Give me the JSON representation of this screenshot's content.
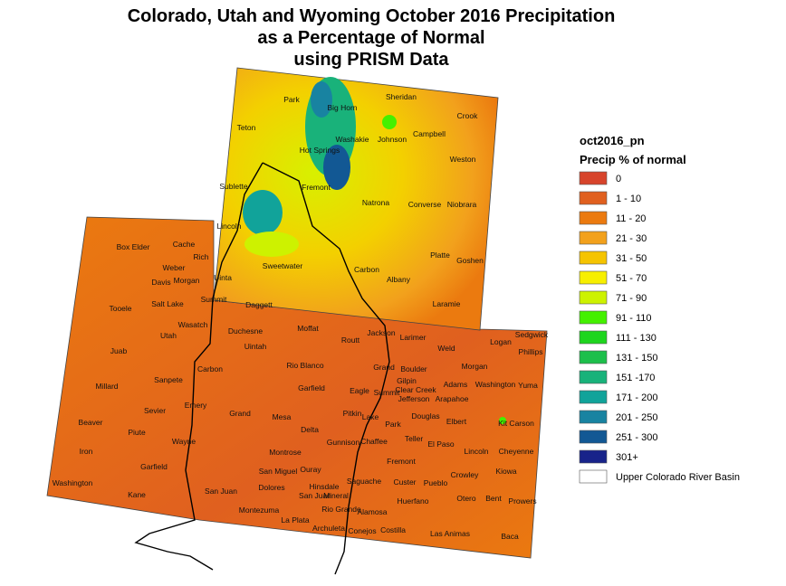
{
  "title": [
    "Colorado, Utah and Wyoming October 2016 Precipitation",
    "as a Percentage of Normal",
    "using PRISM Data"
  ],
  "legend": {
    "title": "oct2016_pn",
    "subtitle": "Precip % of normal",
    "items": [
      {
        "label": "0",
        "color": "#d7442b"
      },
      {
        "label": "1 - 10",
        "color": "#e0601f"
      },
      {
        "label": "11 - 20",
        "color": "#eb7a0f"
      },
      {
        "label": "21 - 30",
        "color": "#f2a11c"
      },
      {
        "label": "31 - 50",
        "color": "#f5c400"
      },
      {
        "label": "51 - 70",
        "color": "#f7ef00"
      },
      {
        "label": "71 - 90",
        "color": "#cdf200"
      },
      {
        "label": "91 - 110",
        "color": "#44f000"
      },
      {
        "label": "111 - 130",
        "color": "#1ed51e"
      },
      {
        "label": "131 - 150",
        "color": "#1dbf4b"
      },
      {
        "label": "151 -170",
        "color": "#19b27a"
      },
      {
        "label": "171 - 200",
        "color": "#11a39a"
      },
      {
        "label": "201 - 250",
        "color": "#1883a1"
      },
      {
        "label": "251 - 300",
        "color": "#125894"
      },
      {
        "label": "301+",
        "color": "#18238a"
      },
      {
        "label": "Upper Colorado River Basin",
        "color": "#ffffff"
      }
    ]
  },
  "labels": [
    "Park",
    "Sheridan",
    "Big Horn",
    "Crook",
    "Teton",
    "Washakie",
    "Johnson",
    "Campbell",
    "Hot Springs",
    "Weston",
    "Fremont",
    "Sublette",
    "Natrona",
    "Converse",
    "Niobrara",
    "Lincoln",
    "Sweetwater",
    "Carbon",
    "Platte",
    "Goshen",
    "Albany",
    "Laramie",
    "Box Elder",
    "Cache",
    "Rich",
    "Weber",
    "Davis",
    "Morgan",
    "Uinta",
    "Summit",
    "Salt Lake",
    "Daggett",
    "Tooele",
    "Duchesne",
    "Wasatch",
    "Utah",
    "Uintah",
    "Juab",
    "Carbon",
    "Millard",
    "Sanpete",
    "Emery",
    "Sevier",
    "Grand",
    "Beaver",
    "Piute",
    "Wayne",
    "Iron",
    "Garfield",
    "Washington",
    "Kane",
    "San Juan",
    "Moffat",
    "Jackson",
    "Larimer",
    "Logan",
    "Sedgwick",
    "Phillips",
    "Routt",
    "Weld",
    "Rio Blanco",
    "Grand",
    "Boulder",
    "Morgan",
    "Gilpin",
    "Clear Creek",
    "Adams",
    "Washington",
    "Yuma",
    "Garfield",
    "Eagle",
    "Summit",
    "Jefferson",
    "Arapahoe",
    "Mesa",
    "Pitkin",
    "Lake",
    "Douglas",
    "Elbert",
    "Kit Carson",
    "Delta",
    "Park",
    "Gunnison",
    "Chaffee",
    "Teller",
    "El Paso",
    "Lincoln",
    "Cheyenne",
    "Montrose",
    "Fremont",
    "Crowley",
    "Kiowa",
    "Ouray",
    "San Miguel",
    "Saguache",
    "Custer",
    "Pueblo",
    "Hinsdale",
    "Dolores",
    "San Juan",
    "Mineral",
    "Huerfano",
    "Otero",
    "Bent",
    "Prowers",
    "Rio Grande",
    "Alamosa",
    "Montezuma",
    "La Plata",
    "Archuleta",
    "Conejos",
    "Costilla",
    "Las Animas",
    "Baca"
  ]
}
